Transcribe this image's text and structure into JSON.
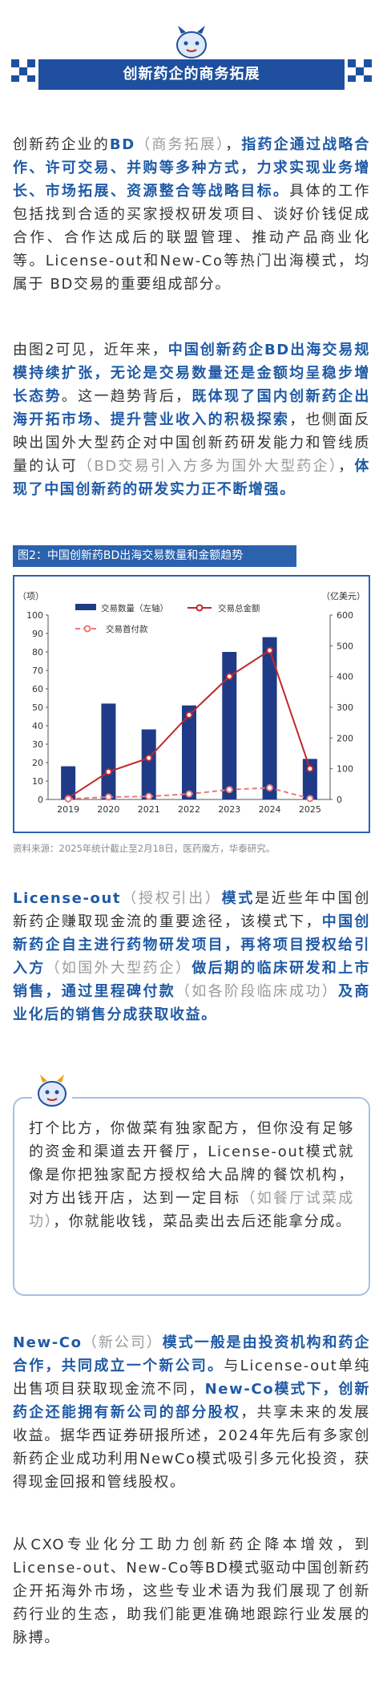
{
  "header": {
    "title": "创新药企的商务拓展"
  },
  "paragraphs": [
    {
      "runs": [
        {
          "text": "创新药企业的",
          "style": "n"
        },
        {
          "text": "BD",
          "style": "b"
        },
        {
          "text": "（商务拓展）",
          "style": "m"
        },
        {
          "text": "，",
          "style": "n"
        },
        {
          "text": "指药企通过战略合作、许可交易、并购等多种方式，力求实现业务增长、市场拓展、资源整合等战略目标。",
          "style": "b"
        },
        {
          "text": "具体的工作包括找到合适的买家授权研发项目、谈好价钱促成合作、合作达成后的联盟管理、推动产品商业化等。License-out和New-Co等热门出海模式，均属于 BD交易的重要组成部分。",
          "style": "n"
        }
      ]
    },
    {
      "runs": [
        {
          "text": "由图2可见，近年来，",
          "style": "n"
        },
        {
          "text": "中国创新药企BD出海交易规模持续扩张，无论是交易数量还是金额均呈稳步增长态势",
          "style": "b"
        },
        {
          "text": "。这一趋势背后，",
          "style": "n"
        },
        {
          "text": "既体现了国内创新药企出海开拓市场、提升营业收入的积极探索",
          "style": "b"
        },
        {
          "text": "，也侧面反映出国外大型药企对中国创新药研发能力和管线质量的认可",
          "style": "n"
        },
        {
          "text": "（BD交易引入方多为国外大型药企）",
          "style": "m"
        },
        {
          "text": "，",
          "style": "n"
        },
        {
          "text": "体现了中国创新药的研发实力正不断增强。",
          "style": "b"
        }
      ]
    },
    {
      "runs": [
        {
          "text": "License-out",
          "style": "b"
        },
        {
          "text": "（授权引出）",
          "style": "m"
        },
        {
          "text": "模式",
          "style": "b"
        },
        {
          "text": "是近些年中国创新药企赚取现金流的重要途径，该模式下，",
          "style": "n"
        },
        {
          "text": "中国创新药企自主进行药物研发项目，再将项目授权给引入方",
          "style": "b"
        },
        {
          "text": "（如国外大型药企）",
          "style": "m"
        },
        {
          "text": "做后期的临床研发和上市销售，通过里程碑付款",
          "style": "b"
        },
        {
          "text": "（如各阶段临床成功）",
          "style": "m"
        },
        {
          "text": "及商业化后的销售分成获取收益。",
          "style": "b"
        }
      ]
    },
    {
      "runs": [
        {
          "text": "New-Co",
          "style": "b"
        },
        {
          "text": "（新公司）",
          "style": "m"
        },
        {
          "text": "模式一般是由投资机构和药企合作，共同成立一个新公司。",
          "style": "b"
        },
        {
          "text": "与License-out单纯出售项目获取现金流不同，",
          "style": "n"
        },
        {
          "text": "New-Co模式下，创新药企还能拥有新公司的部分股权",
          "style": "b"
        },
        {
          "text": "，共享未来的发展收益。据华西证券研报所述，2024年先后有多家创新药企业成功利用NewCo模式吸引多元化投资，获得现金回报和管线股权。",
          "style": "n"
        }
      ]
    },
    {
      "runs": [
        {
          "text": "从CXO专业化分工助力创新药企降本增效，到License-out、New-Co等BD模式驱动中国创新药企开拓海外市场，这些专业术语为我们展现了创新药行业的生态，助我们能更准确地跟踪行业发展的脉搏。",
          "style": "n"
        }
      ]
    }
  ],
  "quote": {
    "runs": [
      {
        "text": "打个比方，你做菜有独家配方，但你没有足够的资金和渠道去开餐厅，License-out模式就像是你把独家配方授权给大品牌的餐饮机构，对方出钱开店，达到一定目标",
        "style": "n"
      },
      {
        "text": "（如餐厅试菜成功）",
        "style": "m"
      },
      {
        "text": "，你就能收钱，菜品卖出去后还能拿分成。",
        "style": "n"
      }
    ]
  },
  "figure": {
    "caption": "图2：中国创新药BD出海交易数量和金额趋势",
    "source": "资料来源：2025年统计截止至2月18日，医药魔方，华泰研究。",
    "chart_data": {
      "type": "bar",
      "categories": [
        "2019",
        "2020",
        "2021",
        "2022",
        "2023",
        "2024",
        "2025"
      ],
      "ylabel": "（项）",
      "y2label": "（亿美元）",
      "ylim": [
        0,
        100
      ],
      "yticks": [
        0,
        10,
        20,
        30,
        40,
        50,
        60,
        70,
        80,
        90,
        100
      ],
      "y2lim": [
        0,
        600
      ],
      "y2ticks": [
        0,
        100,
        200,
        300,
        400,
        500,
        600
      ],
      "series": [
        {
          "name": "交易数量（左轴）",
          "type": "bar",
          "color": "#1f3b87",
          "values": [
            18,
            52,
            38,
            51,
            80,
            88,
            22
          ]
        },
        {
          "name": "交易总金额",
          "type": "line",
          "axis": "y2",
          "color": "#c0282d",
          "values": [
            5,
            90,
            135,
            275,
            400,
            485,
            100
          ]
        },
        {
          "name": "交易首付款",
          "type": "line",
          "axis": "y2",
          "color": "#e8797b",
          "dashed": true,
          "values": [
            2,
            8,
            10,
            18,
            32,
            38,
            3
          ]
        }
      ]
    }
  }
}
